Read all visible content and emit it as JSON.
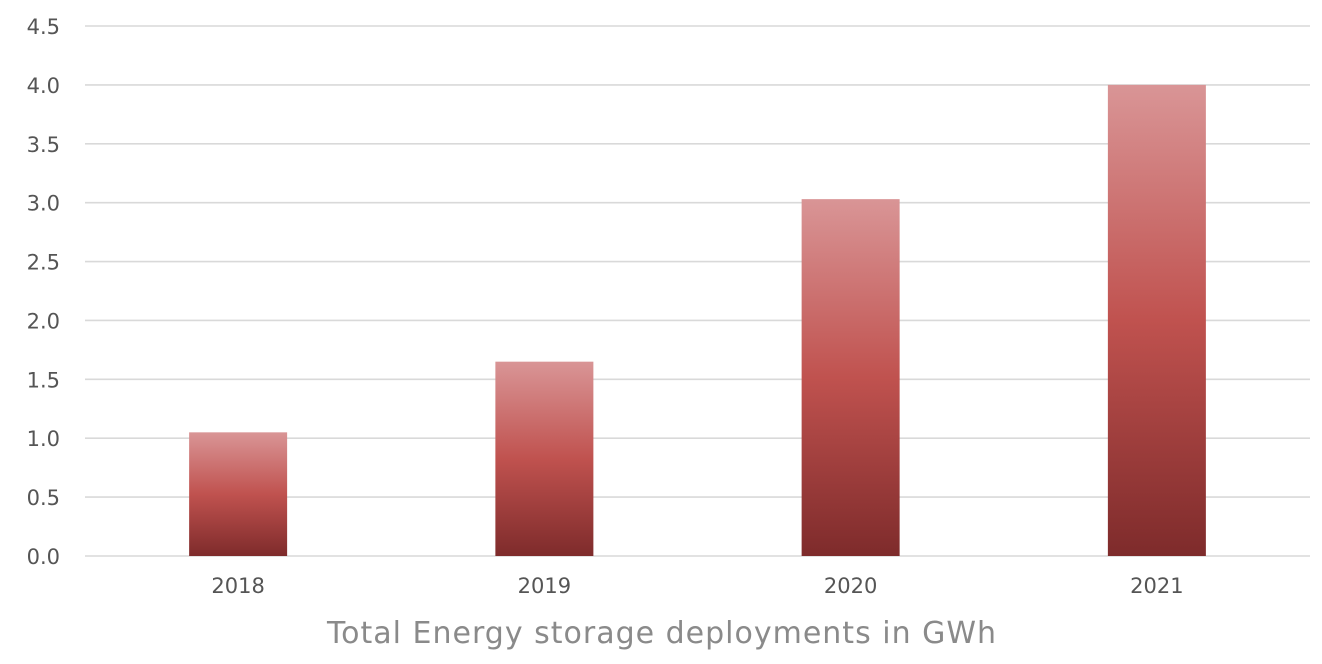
{
  "chart_data": {
    "type": "bar",
    "title": "Total Energy storage deployments in GWh",
    "xlabel": "",
    "ylabel": "",
    "categories": [
      "2018",
      "2019",
      "2020",
      "2021"
    ],
    "values": [
      1.05,
      1.65,
      3.03,
      4.0
    ],
    "ylim": [
      0,
      4.5
    ],
    "yticks": [
      "0.0",
      "0.5",
      "1.0",
      "1.5",
      "2.0",
      "2.5",
      "3.0",
      "3.5",
      "4.0",
      "4.5"
    ],
    "grid": true,
    "legend": "none",
    "colors": {
      "bar_top": "#d99596",
      "bar_mid": "#c0524f",
      "bar_bottom": "#7e2b2b",
      "grid": "#d9d9d9",
      "tick_text": "#555555",
      "title_text": "#8a8a8a"
    }
  }
}
